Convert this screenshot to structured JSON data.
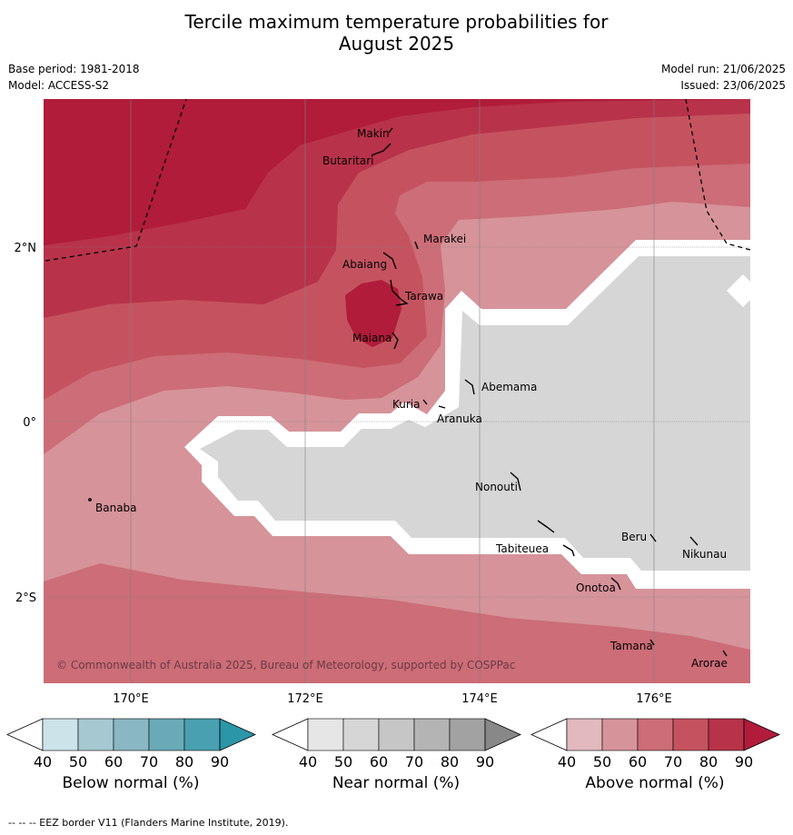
{
  "header": {
    "title_line1": "Tercile maximum temperature probabilities for",
    "title_line2": "August 2025",
    "base_period": "Base period: 1981-2018",
    "model": "Model: ACCESS-S2",
    "model_run": "Model run: 21/06/2025",
    "issued": "Issued: 23/06/2025"
  },
  "map": {
    "lon_labels": [
      "170°E",
      "172°E",
      "174°E",
      "176°E"
    ],
    "lat_labels": [
      "2°N",
      "0°",
      "2°S"
    ],
    "places": [
      "Makin",
      "Butaritari",
      "Marakei",
      "Abaiang",
      "Tarawa",
      "Maiana",
      "Abemama",
      "Kuria",
      "Aranuka",
      "Banaba",
      "Nonouti",
      "Beru",
      "Tabiteuea",
      "Nikunau",
      "Onotoa",
      "Tamana",
      "Arorae"
    ],
    "copyright": "© Commonwealth of Australia 2025, Bureau of Meteorology, supported by COSPPac"
  },
  "colorbars": [
    {
      "label": "Below normal (%)",
      "ticks": [
        "40",
        "50",
        "60",
        "70",
        "80",
        "90"
      ],
      "colors": [
        "#cce3ea",
        "#a6c8d1",
        "#89b7c4",
        "#6aaab8",
        "#48a0b0",
        "#2a96a8"
      ]
    },
    {
      "label": "Near normal (%)",
      "ticks": [
        "40",
        "50",
        "60",
        "70",
        "80",
        "90"
      ],
      "colors": [
        "#e6e6e6",
        "#d6d6d6",
        "#c6c6c6",
        "#b4b4b4",
        "#a2a2a2",
        "#888888"
      ]
    },
    {
      "label": "Above normal (%)",
      "ticks": [
        "40",
        "50",
        "60",
        "70",
        "80",
        "90"
      ],
      "colors": [
        "#e2b9bf",
        "#d6939a",
        "#cc6d77",
        "#c5535f",
        "#b8324a",
        "#b01c3a"
      ]
    }
  ],
  "footer": "-- -- -- EEZ border V11 (Flanders Marine Institute, 2019)."
}
